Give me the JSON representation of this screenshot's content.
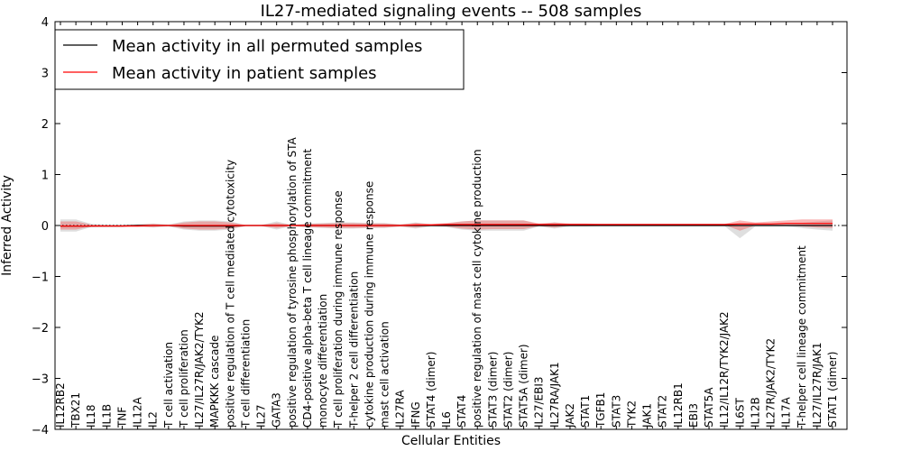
{
  "chart_data": {
    "type": "line",
    "title": "IL27-mediated signaling events -- 508 samples",
    "xlabel": "Cellular Entities",
    "ylabel": "Inferred Activity",
    "ylim": [
      -4,
      4
    ],
    "yticks": [
      -4,
      -3,
      -2,
      -1,
      0,
      1,
      2,
      3,
      4
    ],
    "legend_position": "top-left",
    "categories": [
      "IL12RB2",
      "TBX21",
      "IL18",
      "IL1B",
      "TNF",
      "IL12A",
      "IL2",
      "T cell activation",
      "T cell proliferation",
      "IL27/IL27R/JAK2/TYK2",
      "MAPKKK cascade",
      "positive regulation of T cell mediated cytotoxicity",
      "T cell differentiation",
      "IL27",
      "GATA3",
      "positive regulation of tyrosine phosphorylation of STA",
      "CD4-positive alpha-beta T cell lineage commitment",
      "monocyte differentiation",
      "T cell proliferation during immune response",
      "T-helper 2 cell differentiation",
      "cytokine production during immune response",
      "mast cell activation",
      "IL27RA",
      "IFNG",
      "STAT4 (dimer)",
      "IL6",
      "STAT4",
      "positive regulation of mast cell cytokine production",
      "STAT3 (dimer)",
      "STAT2 (dimer)",
      "STAT5A (dimer)",
      "IL27/EBI3",
      "IL27RA/JAK1",
      "JAK2",
      "STAT1",
      "TGFB1",
      "STAT3",
      "TYK2",
      "JAK1",
      "STAT2",
      "IL12RB1",
      "EBI3",
      "STAT5A",
      "IL12/IL12R/TYK2/JAK2",
      "IL6ST",
      "IL12B",
      "IL27R/JAK2/TYK2",
      "IL17A",
      "T-helper cell lineage commitment",
      "IL27/IL27R/JAK1",
      "STAT1 (dimer)"
    ],
    "series": [
      {
        "name": "Mean activity in all permuted samples",
        "color": "#000000",
        "values": [
          -0.01,
          -0.01,
          -0.01,
          -0.01,
          -0.01,
          0,
          0,
          0,
          -0.01,
          -0.01,
          -0.01,
          -0.01,
          0,
          0,
          0,
          0,
          0,
          0,
          0,
          0,
          0,
          0,
          0,
          0,
          0,
          0,
          0,
          0,
          0,
          0,
          0,
          0,
          0,
          0,
          0,
          0,
          0,
          0,
          0,
          0,
          0,
          0,
          0,
          0,
          0,
          0,
          0,
          0,
          0,
          0,
          0
        ]
      },
      {
        "name": "Mean activity in patient samples",
        "color": "#ff0000",
        "values": [
          -0.01,
          -0.01,
          -0.01,
          -0.01,
          -0.01,
          -0.01,
          0,
          0,
          0,
          0,
          0,
          0,
          0,
          0,
          0,
          0,
          0,
          0,
          0,
          0,
          0,
          0,
          0,
          0.01,
          0.01,
          0.02,
          0.02,
          0.02,
          0.02,
          0.02,
          0.02,
          0.02,
          0.02,
          0.02,
          0.02,
          0.02,
          0.02,
          0.02,
          0.02,
          0.02,
          0.02,
          0.02,
          0.02,
          0.02,
          0.03,
          0.03,
          0.03,
          0.04,
          0.04,
          0.04,
          0.04
        ]
      }
    ],
    "band_gray": {
      "lower": [
        -0.12,
        -0.12,
        -0.03,
        -0.02,
        -0.02,
        -0.02,
        -0.04,
        -0.02,
        -0.08,
        -0.1,
        -0.1,
        -0.08,
        -0.01,
        -0.01,
        -0.08,
        -0.01,
        -0.04,
        -0.05,
        -0.06,
        -0.06,
        -0.05,
        -0.05,
        -0.02,
        -0.06,
        -0.02,
        -0.03,
        -0.08,
        -0.1,
        -0.1,
        -0.1,
        -0.1,
        -0.02,
        -0.06,
        -0.02,
        -0.02,
        -0.01,
        -0.01,
        -0.01,
        -0.01,
        -0.01,
        -0.01,
        -0.01,
        -0.01,
        -0.01,
        -0.25,
        -0.02,
        -0.02,
        -0.02,
        -0.05,
        -0.08,
        -0.1
      ],
      "upper": [
        0.12,
        0.12,
        0.03,
        0.02,
        0.02,
        0.02,
        0.04,
        0.02,
        0.08,
        0.1,
        0.1,
        0.08,
        0.01,
        0.01,
        0.08,
        0.01,
        0.04,
        0.05,
        0.06,
        0.06,
        0.05,
        0.05,
        0.02,
        0.06,
        0.02,
        0.03,
        0.08,
        0.1,
        0.1,
        0.1,
        0.1,
        0.02,
        0.06,
        0.02,
        0.02,
        0.01,
        0.01,
        0.01,
        0.01,
        0.01,
        0.01,
        0.01,
        0.01,
        0.01,
        0.05,
        0.02,
        0.02,
        0.04,
        0.05,
        0.08,
        0.1
      ]
    },
    "band_red": {
      "lower": [
        -0.08,
        -0.08,
        -0.02,
        -0.01,
        -0.01,
        -0.02,
        -0.03,
        -0.01,
        -0.06,
        -0.08,
        -0.08,
        -0.06,
        -0.01,
        -0.01,
        -0.05,
        -0.01,
        -0.03,
        -0.04,
        -0.05,
        -0.05,
        -0.04,
        -0.04,
        -0.02,
        -0.04,
        -0.01,
        -0.02,
        -0.06,
        -0.08,
        -0.07,
        -0.07,
        -0.07,
        -0.01,
        -0.04,
        0,
        0,
        0.01,
        0.01,
        0.01,
        0.01,
        0.01,
        0.01,
        0.01,
        0.01,
        0.01,
        -0.1,
        0,
        0,
        0,
        -0.02,
        -0.04,
        -0.05
      ],
      "upper": [
        0.08,
        0.08,
        0.02,
        0.01,
        0.01,
        0.02,
        0.03,
        0.01,
        0.06,
        0.08,
        0.08,
        0.06,
        0.01,
        0.01,
        0.05,
        0.01,
        0.03,
        0.04,
        0.05,
        0.05,
        0.04,
        0.04,
        0.02,
        0.05,
        0.03,
        0.05,
        0.08,
        0.1,
        0.1,
        0.1,
        0.1,
        0.04,
        0.06,
        0.04,
        0.04,
        0.03,
        0.03,
        0.03,
        0.03,
        0.03,
        0.03,
        0.03,
        0.03,
        0.03,
        0.1,
        0.06,
        0.08,
        0.1,
        0.12,
        0.12,
        0.12
      ]
    }
  }
}
